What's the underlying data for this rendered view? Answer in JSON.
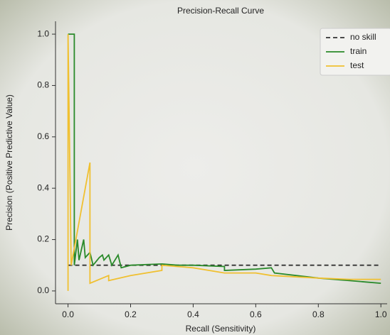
{
  "chart_data": {
    "type": "line",
    "title": "Precision-Recall Curve",
    "xlabel": "Recall (Sensitivity)",
    "ylabel": "Precision (Positive Predictive Value)",
    "xlim": [
      -0.04,
      1.02
    ],
    "ylim": [
      -0.05,
      1.05
    ],
    "xticks": [
      {
        "value": 0,
        "label": "0.0"
      },
      0.2,
      0.4,
      0.6,
      0.8,
      {
        "value": 1,
        "label": "1.0"
      }
    ],
    "yticks": [
      {
        "value": 0,
        "label": "0.0"
      },
      0.2,
      0.4,
      0.6,
      0.8,
      {
        "value": 1,
        "label": "1.0"
      }
    ],
    "legend": "upper right",
    "series": [
      {
        "name": "no skill",
        "color": "#333333",
        "dashed": true,
        "x": [
          0,
          1
        ],
        "values": [
          0.1,
          0.1
        ]
      },
      {
        "name": "train",
        "color": "#2a8a2a",
        "x": [
          0,
          0.02,
          0.02,
          0.03,
          0.035,
          0.05,
          0.055,
          0.07,
          0.08,
          0.1,
          0.11,
          0.115,
          0.13,
          0.14,
          0.16,
          0.17,
          0.2,
          0.3,
          0.35,
          0.4,
          0.5,
          0.5,
          0.6,
          0.65,
          0.66,
          0.8,
          0.9,
          1.0
        ],
        "values": [
          1.0,
          1.0,
          0.1,
          0.2,
          0.12,
          0.2,
          0.13,
          0.15,
          0.1,
          0.13,
          0.14,
          0.12,
          0.14,
          0.1,
          0.14,
          0.09,
          0.1,
          0.105,
          0.1,
          0.1,
          0.095,
          0.08,
          0.085,
          0.09,
          0.07,
          0.05,
          0.04,
          0.03
        ]
      },
      {
        "name": "test",
        "color": "#f0c030",
        "x": [
          0,
          0,
          0.01,
          0.07,
          0.07,
          0.13,
          0.13,
          0.2,
          0.3,
          0.3,
          0.4,
          0.5,
          0.6,
          0.65,
          0.8,
          0.9,
          1.0
        ],
        "values": [
          0,
          1.0,
          0.1,
          0.5,
          0.03,
          0.06,
          0.04,
          0.06,
          0.08,
          0.1,
          0.09,
          0.07,
          0.07,
          0.06,
          0.05,
          0.045,
          0.045
        ]
      }
    ]
  }
}
